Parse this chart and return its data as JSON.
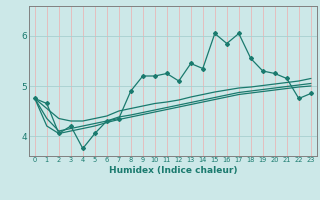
{
  "xlabel": "Humidex (Indice chaleur)",
  "bg_color": "#cce8e8",
  "grid_color_v": "#e8b8b8",
  "grid_color_h": "#a8d0d0",
  "line_color": "#1a7a6e",
  "spine_color": "#808080",
  "xlim": [
    -0.5,
    23.5
  ],
  "ylim": [
    3.6,
    6.6
  ],
  "yticks": [
    4,
    5,
    6
  ],
  "xticks": [
    0,
    1,
    2,
    3,
    4,
    5,
    6,
    7,
    8,
    9,
    10,
    11,
    12,
    13,
    14,
    15,
    16,
    17,
    18,
    19,
    20,
    21,
    22,
    23
  ],
  "series_main": [
    4.75,
    4.65,
    4.05,
    4.2,
    3.75,
    4.05,
    4.3,
    4.35,
    4.9,
    5.2,
    5.2,
    5.25,
    5.1,
    5.45,
    5.35,
    6.05,
    5.85,
    6.05,
    5.55,
    5.3,
    5.25,
    5.15,
    4.75,
    4.85
  ],
  "series_line1": [
    4.75,
    4.55,
    4.35,
    4.3,
    4.3,
    4.35,
    4.4,
    4.5,
    4.55,
    4.6,
    4.65,
    4.68,
    4.72,
    4.78,
    4.83,
    4.88,
    4.92,
    4.96,
    4.98,
    5.01,
    5.04,
    5.07,
    5.1,
    5.15
  ],
  "series_line2": [
    4.75,
    4.35,
    4.1,
    4.15,
    4.2,
    4.25,
    4.3,
    4.38,
    4.42,
    4.47,
    4.52,
    4.57,
    4.62,
    4.67,
    4.72,
    4.77,
    4.82,
    4.87,
    4.9,
    4.93,
    4.96,
    4.99,
    5.02,
    5.05
  ],
  "series_line3": [
    4.75,
    4.2,
    4.05,
    4.1,
    4.15,
    4.2,
    4.27,
    4.33,
    4.38,
    4.43,
    4.48,
    4.53,
    4.58,
    4.63,
    4.68,
    4.73,
    4.78,
    4.83,
    4.86,
    4.89,
    4.92,
    4.95,
    4.98,
    5.0
  ]
}
